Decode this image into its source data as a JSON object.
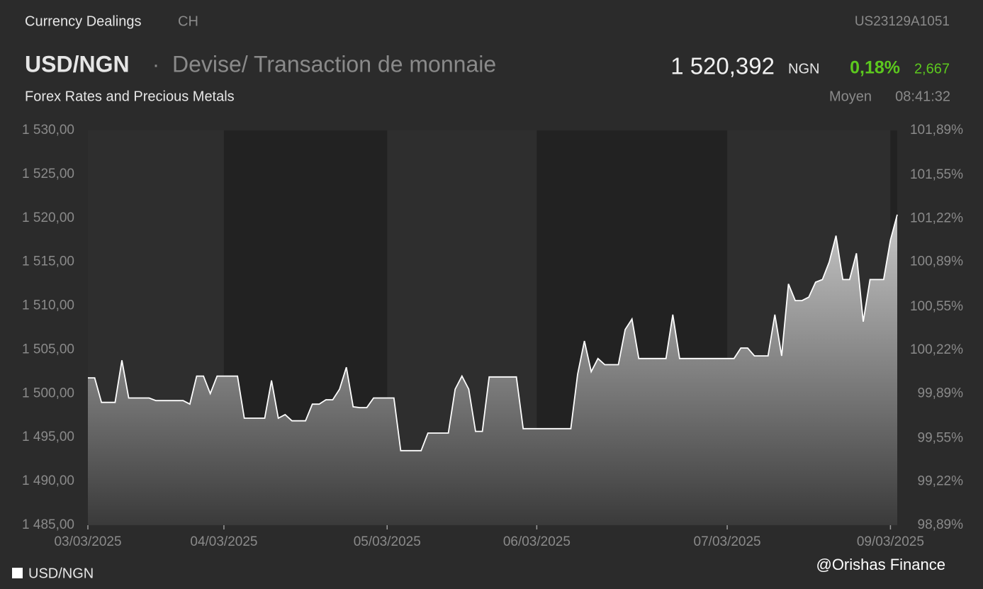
{
  "header": {
    "source": "Currency Dealings",
    "market": "CH",
    "isin": "US23129A1051",
    "symbol": "USD/NGN",
    "separator": "·",
    "description": "Devise/ Transaction de monnaie",
    "price": "1 520,392",
    "currency": "NGN",
    "change_pct": "0,18%",
    "change": "2,667",
    "category": "Forex Rates and Precious Metals",
    "price_type": "Moyen",
    "time": "08:41:32"
  },
  "watermark": "@Orishas Finance",
  "chart_data": {
    "type": "area",
    "x": [
      0,
      1,
      2,
      3,
      4,
      5,
      6,
      7,
      8,
      9,
      10,
      11,
      12,
      13,
      14,
      15,
      16,
      17,
      18,
      19,
      20,
      21,
      22,
      23,
      24,
      25,
      26,
      27,
      28,
      29,
      30,
      31,
      32,
      33,
      34,
      35,
      36,
      37,
      38,
      39,
      40,
      41,
      42,
      43,
      44,
      45,
      46,
      47,
      48,
      49,
      50,
      51,
      52,
      53,
      54,
      55,
      56,
      57,
      58,
      59,
      60,
      61,
      62,
      63,
      64,
      65,
      66,
      67,
      68,
      69,
      70,
      71,
      72,
      73,
      74,
      75,
      76,
      77,
      78,
      79,
      80,
      81,
      82,
      83,
      84,
      85,
      86,
      87,
      88,
      89,
      90,
      91,
      92,
      93,
      94,
      95,
      96,
      97,
      98,
      99,
      100,
      101,
      102,
      103,
      104,
      105,
      106,
      107,
      108,
      109,
      110,
      111,
      112,
      113,
      114,
      115,
      116,
      117,
      118,
      119
    ],
    "series": [
      {
        "name": "USD/NGN",
        "color": "#ffffff",
        "values": [
          1501.8,
          1501.8,
          1499,
          1499,
          1499,
          1503.8,
          1499.5,
          1499.5,
          1499.5,
          1499.5,
          1499.2,
          1499.2,
          1499.2,
          1499.2,
          1499.2,
          1498.8,
          1502,
          1502,
          1500,
          1502,
          1502,
          1502,
          1502,
          1497.2,
          1497.2,
          1497.2,
          1497.2,
          1501.5,
          1497.2,
          1497.6,
          1496.9,
          1496.9,
          1496.9,
          1498.8,
          1498.8,
          1499.3,
          1499.3,
          1500.5,
          1503,
          1498.5,
          1498.4,
          1498.4,
          1499.5,
          1499.5,
          1499.5,
          1499.5,
          1493.5,
          1493.5,
          1493.5,
          1493.5,
          1495.5,
          1495.5,
          1495.5,
          1495.5,
          1500.5,
          1502,
          1500.5,
          1495.7,
          1495.7,
          1501.9,
          1501.9,
          1501.9,
          1501.9,
          1501.9,
          1496,
          1496,
          1496,
          1496,
          1496,
          1496,
          1496,
          1496,
          1502.2,
          1506,
          1502.5,
          1504,
          1503.3,
          1503.3,
          1503.3,
          1507.3,
          1508.5,
          1504,
          1504,
          1504,
          1504,
          1504,
          1509,
          1504,
          1504,
          1504,
          1504,
          1504,
          1504,
          1504,
          1504,
          1504,
          1505.2,
          1505.2,
          1504.3,
          1504.3,
          1504.3,
          1509,
          1504.3,
          1512.5,
          1510.6,
          1510.6,
          1511,
          1512.7,
          1513,
          1515,
          1518,
          1513,
          1513,
          1516,
          1508.2,
          1513,
          1513,
          1513,
          1517.5,
          1520.4
        ]
      }
    ],
    "xlim": [
      0,
      119
    ],
    "xticks": [
      {
        "value": 0,
        "label": "03/03/2025"
      },
      {
        "value": 20,
        "label": "04/03/2025"
      },
      {
        "value": 44,
        "label": "05/03/2025"
      },
      {
        "value": 66,
        "label": "06/03/2025"
      },
      {
        "value": 94,
        "label": "07/03/2025"
      },
      {
        "value": 118,
        "label": "09/03/2025"
      }
    ],
    "ylim": [
      1485,
      1530
    ],
    "yticks": [
      {
        "value": 1530,
        "label": "1 530,00"
      },
      {
        "value": 1525,
        "label": "1 525,00"
      },
      {
        "value": 1520,
        "label": "1 520,00"
      },
      {
        "value": 1515,
        "label": "1 515,00"
      },
      {
        "value": 1510,
        "label": "1 510,00"
      },
      {
        "value": 1505,
        "label": "1 505,00"
      },
      {
        "value": 1500,
        "label": "1 500,00"
      },
      {
        "value": 1495,
        "label": "1 495,00"
      },
      {
        "value": 1490,
        "label": "1 490,00"
      },
      {
        "value": 1485,
        "label": "1 485,00"
      }
    ],
    "y2lim": [
      98.89,
      101.89
    ],
    "y2ticks": [
      {
        "value": 101.89,
        "label": "101,89%"
      },
      {
        "value": 101.55,
        "label": "101,55%"
      },
      {
        "value": 101.22,
        "label": "101,22%"
      },
      {
        "value": 100.89,
        "label": "100,89%"
      },
      {
        "value": 100.55,
        "label": "100,55%"
      },
      {
        "value": 100.22,
        "label": "100,22%"
      },
      {
        "value": 99.89,
        "label": "99,89%"
      },
      {
        "value": 99.55,
        "label": "99,55%"
      },
      {
        "value": 99.22,
        "label": "99,22%"
      },
      {
        "value": 98.89,
        "label": "98,89%"
      }
    ]
  }
}
